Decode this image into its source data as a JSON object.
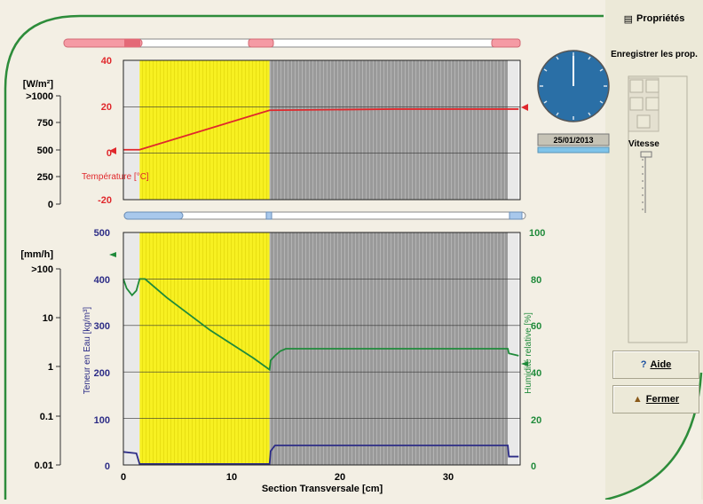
{
  "colors": {
    "yellow_layer": "#f7f021",
    "gray_layer": "#9a9a9a",
    "temperature": "#e0282c",
    "humidity": "#1f8a3a",
    "water": "#2c2c86",
    "frame": "#2d8c3a"
  },
  "sidebar": {
    "properties_label": "Propriétés",
    "save_label": "Enregistrer les prop.",
    "speed_label": "Vitesse",
    "help_label": "Aide",
    "close_label": "Fermer"
  },
  "date_label": "25/01/2013",
  "top_chart": {
    "left_axis_unit": "[W/m²]",
    "left_axis_ticks": [
      ">1000",
      "750",
      "500",
      "250",
      "0"
    ],
    "right_axis_ticks": [
      "40",
      "20",
      "0",
      "-20"
    ],
    "series_label": "Température [°C]"
  },
  "bottom_chart": {
    "log_axis_unit": "[mm/h]",
    "log_axis_ticks": [
      ">100",
      "10",
      "1",
      "0.1",
      "0.01"
    ],
    "water_axis_ticks": [
      "500",
      "400",
      "300",
      "200",
      "100",
      "0"
    ],
    "water_axis_label": "Teneur en Eau [kg/m³]",
    "humidity_axis_ticks": [
      "100",
      "80",
      "60",
      "40",
      "20",
      "0"
    ],
    "humidity_axis_label": "Humidité relative [%]",
    "x_ticks": [
      "0",
      "10",
      "20",
      "30"
    ],
    "x_label": "Section Transversale [cm]"
  },
  "chart_data": [
    {
      "type": "line",
      "x_unit": "cm",
      "ylim": [
        -20,
        40
      ],
      "layers": [
        {
          "x_start": 0,
          "x_end": 1.5
        },
        {
          "x_start": 1.5,
          "x_end": 13.5
        },
        {
          "x_start": 13.5,
          "x_end": 35.5
        },
        {
          "x_start": 35.5,
          "x_end": 36.5
        }
      ],
      "series": [
        {
          "name": "Température [°C]",
          "x": [
            0,
            1.5,
            13.5,
            25,
            35.5,
            36.5
          ],
          "y": [
            1.5,
            1.5,
            18.5,
            19,
            19,
            19
          ]
        }
      ]
    },
    {
      "type": "line",
      "x_unit": "cm",
      "xlim": [
        0,
        36.5
      ],
      "series": [
        {
          "axis": "Humidité relative [%]",
          "ylim": [
            0,
            100
          ],
          "x": [
            0,
            0.3,
            0.8,
            1.2,
            1.5,
            2,
            4,
            6,
            8,
            10,
            12,
            13.5,
            13.6,
            14,
            14.5,
            15,
            20,
            30,
            35.5,
            35.6,
            36.5
          ],
          "y": [
            80,
            76,
            73,
            75,
            80,
            80,
            72,
            65,
            58,
            52,
            46,
            41,
            45,
            47,
            49,
            50,
            50,
            50,
            50,
            48,
            47
          ]
        },
        {
          "axis": "Teneur en Eau [kg/m³]",
          "ylim": [
            0,
            500
          ],
          "x": [
            0,
            1.2,
            1.5,
            13.5,
            13.6,
            14,
            35.5,
            35.6,
            36.5
          ],
          "y": [
            28,
            25,
            2,
            2,
            30,
            42,
            42,
            18,
            18
          ]
        }
      ]
    }
  ]
}
